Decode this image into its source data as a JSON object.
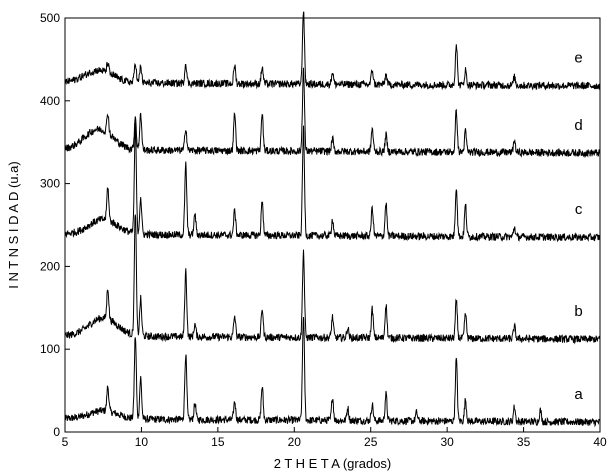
{
  "chart_data": {
    "type": "line",
    "title": "",
    "xlabel": "2 T H E T A (grados)",
    "ylabel": "I N T N S I D A D (u.a)",
    "xlim": [
      5,
      40
    ],
    "ylim": [
      0,
      500
    ],
    "xticks": [
      5,
      10,
      15,
      20,
      25,
      30,
      35,
      40
    ],
    "yticks": [
      0,
      100,
      200,
      300,
      400,
      500
    ],
    "grid": false,
    "legend": "none",
    "line_color": "#000000",
    "series": [
      {
        "name": "a",
        "baseline": 12,
        "peaks": [
          [
            7.8,
            30
          ],
          [
            9.6,
            100
          ],
          [
            9.95,
            50
          ],
          [
            12.9,
            80
          ],
          [
            13.5,
            20
          ],
          [
            16.1,
            22
          ],
          [
            17.9,
            40
          ],
          [
            20.6,
            128
          ],
          [
            22.5,
            28
          ],
          [
            23.5,
            15
          ],
          [
            25.1,
            20
          ],
          [
            26.0,
            32
          ],
          [
            28.0,
            10
          ],
          [
            30.6,
            75
          ],
          [
            31.2,
            26
          ],
          [
            34.4,
            18
          ],
          [
            36.1,
            14
          ]
        ],
        "hump": [
          7.5,
          10
        ]
      },
      {
        "name": "b",
        "baseline": 112,
        "peaks": [
          [
            7.8,
            38
          ],
          [
            9.6,
            150
          ],
          [
            9.95,
            45
          ],
          [
            12.9,
            80
          ],
          [
            13.5,
            15
          ],
          [
            16.1,
            25
          ],
          [
            17.9,
            35
          ],
          [
            20.6,
            105
          ],
          [
            22.5,
            25
          ],
          [
            23.5,
            12
          ],
          [
            25.1,
            35
          ],
          [
            26.0,
            40
          ],
          [
            30.6,
            45
          ],
          [
            31.2,
            30
          ],
          [
            34.4,
            15
          ]
        ],
        "hump": [
          7.5,
          22
        ]
      },
      {
        "name": "c",
        "baseline": 235,
        "peaks": [
          [
            7.8,
            40
          ],
          [
            9.6,
            130
          ],
          [
            9.95,
            45
          ],
          [
            12.9,
            85
          ],
          [
            13.5,
            25
          ],
          [
            16.1,
            30
          ],
          [
            17.9,
            42
          ],
          [
            20.6,
            130
          ],
          [
            22.5,
            20
          ],
          [
            25.1,
            35
          ],
          [
            26.0,
            40
          ],
          [
            30.6,
            60
          ],
          [
            31.2,
            38
          ],
          [
            34.4,
            12
          ]
        ],
        "hump": [
          7.5,
          18
        ]
      },
      {
        "name": "d",
        "baseline": 337,
        "peaks": [
          [
            7.8,
            25
          ],
          [
            9.6,
            40
          ],
          [
            9.95,
            45
          ],
          [
            12.9,
            28
          ],
          [
            16.1,
            45
          ],
          [
            17.9,
            45
          ],
          [
            20.6,
            100
          ],
          [
            22.5,
            15
          ],
          [
            25.1,
            28
          ],
          [
            26.0,
            20
          ],
          [
            30.6,
            50
          ],
          [
            31.2,
            25
          ],
          [
            34.4,
            15
          ]
        ],
        "hump": [
          7.2,
          25
        ]
      },
      {
        "name": "e",
        "baseline": 418,
        "peaks": [
          [
            7.8,
            12
          ],
          [
            9.6,
            25
          ],
          [
            9.95,
            20
          ],
          [
            12.9,
            25
          ],
          [
            16.1,
            22
          ],
          [
            17.9,
            20
          ],
          [
            20.6,
            90
          ],
          [
            22.5,
            15
          ],
          [
            25.1,
            18
          ],
          [
            26.0,
            12
          ],
          [
            30.6,
            50
          ],
          [
            31.2,
            18
          ],
          [
            34.4,
            10
          ]
        ],
        "hump": [
          7.2,
          15
        ]
      }
    ]
  }
}
